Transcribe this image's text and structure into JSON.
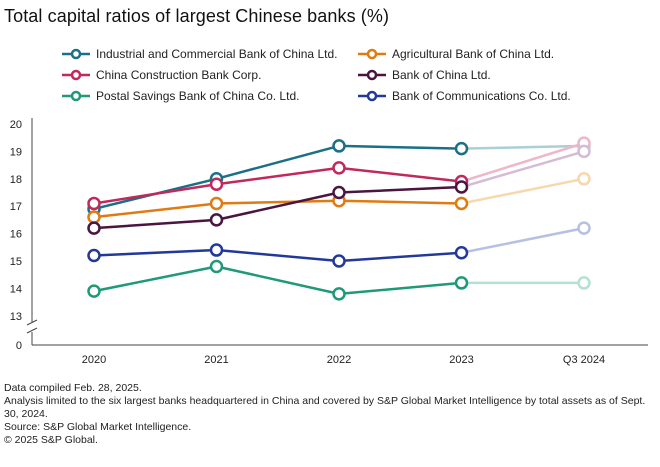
{
  "chart_data": {
    "type": "line",
    "title": "Total capital ratios of largest Chinese banks (%)",
    "xlabel": "",
    "ylabel": "",
    "categories": [
      "2020",
      "2021",
      "2022",
      "2023",
      "Q3 2024"
    ],
    "y_ticks": [
      "20",
      "19",
      "18",
      "17",
      "16",
      "15",
      "14",
      "13",
      "0"
    ],
    "ylim": [
      13,
      20
    ],
    "axis_break": true,
    "grid": false,
    "legend_position": "top",
    "faded_last_segment": true,
    "series": [
      {
        "name": "Industrial and Commercial Bank of China Ltd.",
        "color": "#1b6f86",
        "faded_color": "#a9cfd8",
        "values": [
          16.9,
          18.0,
          19.2,
          19.1,
          19.2
        ]
      },
      {
        "name": "Agricultural Bank of China Ltd.",
        "color": "#e07b12",
        "faded_color": "#f7d7ac",
        "values": [
          16.6,
          17.1,
          17.2,
          17.1,
          18.0
        ]
      },
      {
        "name": "China Construction Bank Corp.",
        "color": "#c2285c",
        "faded_color": "#efb6c9",
        "values": [
          17.1,
          17.8,
          18.4,
          17.9,
          19.3
        ]
      },
      {
        "name": "Bank of China Ltd.",
        "color": "#4a1541",
        "faded_color": "#d3bcd4",
        "values": [
          16.2,
          16.5,
          17.5,
          17.7,
          19.0
        ]
      },
      {
        "name": "Postal Savings Bank of China Co. Ltd.",
        "color": "#1f9a78",
        "faded_color": "#b5e1d3",
        "values": [
          13.9,
          14.8,
          13.8,
          14.2,
          14.2
        ]
      },
      {
        "name": "Bank of Communications Co. Ltd.",
        "color": "#23399a",
        "faded_color": "#b6c0e2",
        "values": [
          15.2,
          15.4,
          15.0,
          15.3,
          16.2
        ]
      }
    ]
  },
  "footer": {
    "lines": [
      "Data compiled Feb. 28, 2025.",
      "Analysis limited to the six largest banks headquartered in China and covered by S&P Global Market Intelligence by total assets as of Sept. 30, 2024.",
      "Source: S&P Global Market Intelligence.",
      "© 2025 S&P Global."
    ]
  }
}
